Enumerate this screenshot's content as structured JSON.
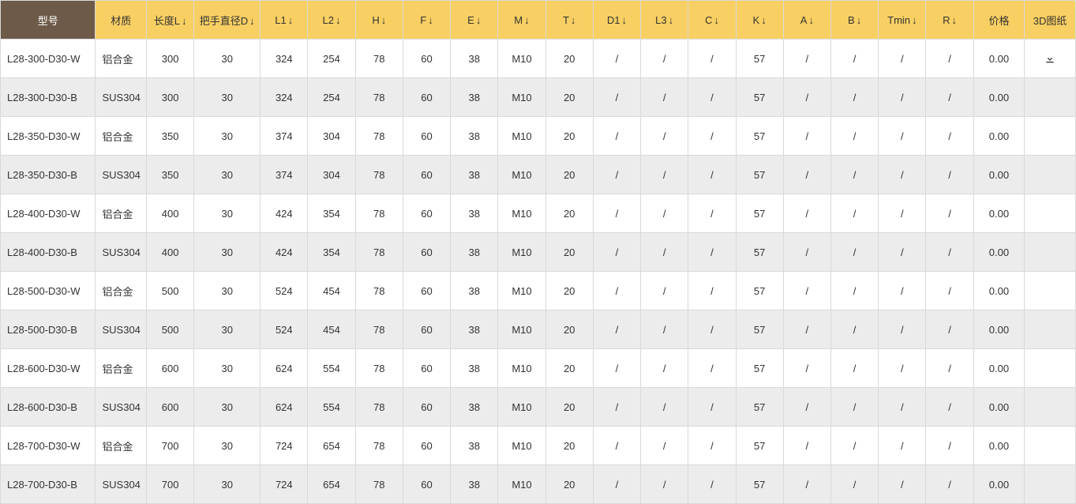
{
  "colors": {
    "header_bg": "#f8cf62",
    "header_model_bg": "#6e5a49",
    "header_model_fg": "#ffffff",
    "border": "#d9d9d9",
    "row_even": "#ececec",
    "row_odd": "#ffffff",
    "text": "#333333"
  },
  "columns": [
    {
      "key": "model",
      "label": "型号",
      "sortable": false,
      "special": "model"
    },
    {
      "key": "material",
      "label": "材质",
      "sortable": false
    },
    {
      "key": "L",
      "label": "长度L",
      "sortable": true
    },
    {
      "key": "D",
      "label": "把手直径D",
      "sortable": true
    },
    {
      "key": "L1",
      "label": "L1",
      "sortable": true
    },
    {
      "key": "L2",
      "label": "L2",
      "sortable": true
    },
    {
      "key": "H",
      "label": "H",
      "sortable": true
    },
    {
      "key": "F",
      "label": "F",
      "sortable": true
    },
    {
      "key": "E",
      "label": "E",
      "sortable": true
    },
    {
      "key": "M",
      "label": "M",
      "sortable": true
    },
    {
      "key": "T",
      "label": "T",
      "sortable": true
    },
    {
      "key": "D1",
      "label": "D1",
      "sortable": true
    },
    {
      "key": "L3",
      "label": "L3",
      "sortable": true
    },
    {
      "key": "C",
      "label": "C",
      "sortable": true
    },
    {
      "key": "K",
      "label": "K",
      "sortable": true
    },
    {
      "key": "A",
      "label": "A",
      "sortable": true
    },
    {
      "key": "B",
      "label": "B",
      "sortable": true
    },
    {
      "key": "Tmin",
      "label": "Tmin",
      "sortable": true
    },
    {
      "key": "R",
      "label": "R",
      "sortable": true
    },
    {
      "key": "price",
      "label": "价格",
      "sortable": false
    },
    {
      "key": "drawing",
      "label": "3D图纸",
      "sortable": false
    }
  ],
  "rows": [
    {
      "model": "L28-300-D30-W",
      "material": "铝合金",
      "L": "300",
      "D": "30",
      "L1": "324",
      "L2": "254",
      "H": "78",
      "F": "60",
      "E": "38",
      "M": "M10",
      "T": "20",
      "D1": "/",
      "L3": "/",
      "C": "/",
      "K": "57",
      "A": "/",
      "B": "/",
      "Tmin": "/",
      "R": "/",
      "price": "0.00",
      "drawing": true
    },
    {
      "model": "L28-300-D30-B",
      "material": "SUS304",
      "L": "300",
      "D": "30",
      "L1": "324",
      "L2": "254",
      "H": "78",
      "F": "60",
      "E": "38",
      "M": "M10",
      "T": "20",
      "D1": "/",
      "L3": "/",
      "C": "/",
      "K": "57",
      "A": "/",
      "B": "/",
      "Tmin": "/",
      "R": "/",
      "price": "0.00",
      "drawing": false
    },
    {
      "model": "L28-350-D30-W",
      "material": "铝合金",
      "L": "350",
      "D": "30",
      "L1": "374",
      "L2": "304",
      "H": "78",
      "F": "60",
      "E": "38",
      "M": "M10",
      "T": "20",
      "D1": "/",
      "L3": "/",
      "C": "/",
      "K": "57",
      "A": "/",
      "B": "/",
      "Tmin": "/",
      "R": "/",
      "price": "0.00",
      "drawing": false
    },
    {
      "model": "L28-350-D30-B",
      "material": "SUS304",
      "L": "350",
      "D": "30",
      "L1": "374",
      "L2": "304",
      "H": "78",
      "F": "60",
      "E": "38",
      "M": "M10",
      "T": "20",
      "D1": "/",
      "L3": "/",
      "C": "/",
      "K": "57",
      "A": "/",
      "B": "/",
      "Tmin": "/",
      "R": "/",
      "price": "0.00",
      "drawing": false
    },
    {
      "model": "L28-400-D30-W",
      "material": "铝合金",
      "L": "400",
      "D": "30",
      "L1": "424",
      "L2": "354",
      "H": "78",
      "F": "60",
      "E": "38",
      "M": "M10",
      "T": "20",
      "D1": "/",
      "L3": "/",
      "C": "/",
      "K": "57",
      "A": "/",
      "B": "/",
      "Tmin": "/",
      "R": "/",
      "price": "0.00",
      "drawing": false
    },
    {
      "model": "L28-400-D30-B",
      "material": "SUS304",
      "L": "400",
      "D": "30",
      "L1": "424",
      "L2": "354",
      "H": "78",
      "F": "60",
      "E": "38",
      "M": "M10",
      "T": "20",
      "D1": "/",
      "L3": "/",
      "C": "/",
      "K": "57",
      "A": "/",
      "B": "/",
      "Tmin": "/",
      "R": "/",
      "price": "0.00",
      "drawing": false
    },
    {
      "model": "L28-500-D30-W",
      "material": "铝合金",
      "L": "500",
      "D": "30",
      "L1": "524",
      "L2": "454",
      "H": "78",
      "F": "60",
      "E": "38",
      "M": "M10",
      "T": "20",
      "D1": "/",
      "L3": "/",
      "C": "/",
      "K": "57",
      "A": "/",
      "B": "/",
      "Tmin": "/",
      "R": "/",
      "price": "0.00",
      "drawing": false
    },
    {
      "model": "L28-500-D30-B",
      "material": "SUS304",
      "L": "500",
      "D": "30",
      "L1": "524",
      "L2": "454",
      "H": "78",
      "F": "60",
      "E": "38",
      "M": "M10",
      "T": "20",
      "D1": "/",
      "L3": "/",
      "C": "/",
      "K": "57",
      "A": "/",
      "B": "/",
      "Tmin": "/",
      "R": "/",
      "price": "0.00",
      "drawing": false
    },
    {
      "model": "L28-600-D30-W",
      "material": "铝合金",
      "L": "600",
      "D": "30",
      "L1": "624",
      "L2": "554",
      "H": "78",
      "F": "60",
      "E": "38",
      "M": "M10",
      "T": "20",
      "D1": "/",
      "L3": "/",
      "C": "/",
      "K": "57",
      "A": "/",
      "B": "/",
      "Tmin": "/",
      "R": "/",
      "price": "0.00",
      "drawing": false
    },
    {
      "model": "L28-600-D30-B",
      "material": "SUS304",
      "L": "600",
      "D": "30",
      "L1": "624",
      "L2": "554",
      "H": "78",
      "F": "60",
      "E": "38",
      "M": "M10",
      "T": "20",
      "D1": "/",
      "L3": "/",
      "C": "/",
      "K": "57",
      "A": "/",
      "B": "/",
      "Tmin": "/",
      "R": "/",
      "price": "0.00",
      "drawing": false
    },
    {
      "model": "L28-700-D30-W",
      "material": "铝合金",
      "L": "700",
      "D": "30",
      "L1": "724",
      "L2": "654",
      "H": "78",
      "F": "60",
      "E": "38",
      "M": "M10",
      "T": "20",
      "D1": "/",
      "L3": "/",
      "C": "/",
      "K": "57",
      "A": "/",
      "B": "/",
      "Tmin": "/",
      "R": "/",
      "price": "0.00",
      "drawing": false
    },
    {
      "model": "L28-700-D30-B",
      "material": "SUS304",
      "L": "700",
      "D": "30",
      "L1": "724",
      "L2": "654",
      "H": "78",
      "F": "60",
      "E": "38",
      "M": "M10",
      "T": "20",
      "D1": "/",
      "L3": "/",
      "C": "/",
      "K": "57",
      "A": "/",
      "B": "/",
      "Tmin": "/",
      "R": "/",
      "price": "0.00",
      "drawing": false
    }
  ]
}
